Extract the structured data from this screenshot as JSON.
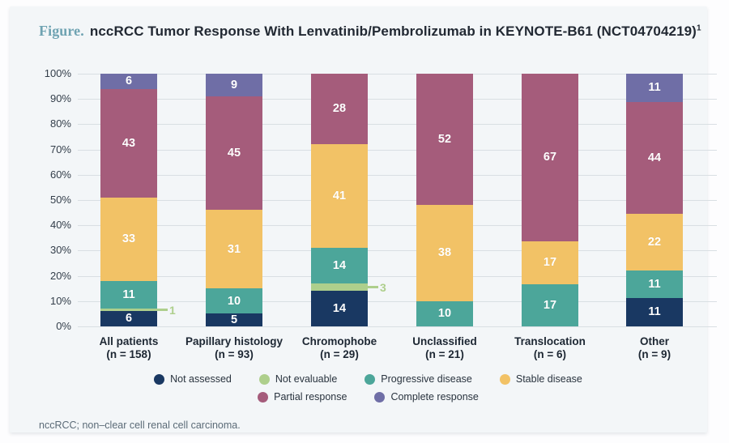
{
  "title": {
    "prefix": "Figure.",
    "main": "nccRCC Tumor Response With Lenvatinib/Pembrolizumab in KEYNOTE-B61 (NCT04704219)",
    "superscript": "1"
  },
  "footnote": "nccRCC; non–clear cell renal cell carcinoma.",
  "colors": {
    "card_bg": "#f3f6f8",
    "gridline": "#d9dfe3",
    "figure_label_teal": "#6fa3b2",
    "title_text": "#222933",
    "callout_green": "#aecf8c"
  },
  "chart_data": {
    "type": "bar",
    "stacked": true,
    "orientation": "vertical",
    "title": "nccRCC Tumor Response With Lenvatinib/Pembrolizumab in KEYNOTE-B61 (NCT04704219)",
    "xlabel": "",
    "ylabel": "",
    "ylim": [
      0,
      100
    ],
    "ytick_step": 10,
    "ytick_suffix": "%",
    "grid": true,
    "legend_position": "bottom",
    "categories": [
      {
        "label": "All patients",
        "n": "(n = 158)"
      },
      {
        "label": "Papillary histology",
        "n": "(n = 93)"
      },
      {
        "label": "Chromophobe",
        "n": "(n = 29)"
      },
      {
        "label": "Unclassified",
        "n": "(n = 21)"
      },
      {
        "label": "Translocation",
        "n": "(n = 6)"
      },
      {
        "label": "Other",
        "n": "(n = 9)"
      }
    ],
    "series": [
      {
        "name": "Not assessed",
        "color": "#193862",
        "values": [
          6,
          5,
          14,
          0,
          0,
          11
        ]
      },
      {
        "name": "Not evaluable",
        "color": "#aecf8c",
        "values": [
          1,
          0,
          3,
          0,
          0,
          0
        ],
        "label_outside": true
      },
      {
        "name": "Progressive disease",
        "color": "#4ca69a",
        "values": [
          11,
          10,
          14,
          10,
          17,
          11
        ]
      },
      {
        "name": "Stable disease",
        "color": "#f2c266",
        "values": [
          33,
          31,
          41,
          38,
          17,
          22
        ]
      },
      {
        "name": "Partial response",
        "color": "#a55c7b",
        "values": [
          43,
          45,
          28,
          52,
          67,
          44
        ]
      },
      {
        "name": "Complete response",
        "color": "#6f6ea6",
        "values": [
          6,
          9,
          0,
          0,
          0,
          11
        ]
      }
    ],
    "legend_rows": [
      [
        "Not assessed",
        "Not evaluable",
        "Progressive disease",
        "Stable disease"
      ],
      [
        "Partial response",
        "Complete response"
      ]
    ]
  }
}
